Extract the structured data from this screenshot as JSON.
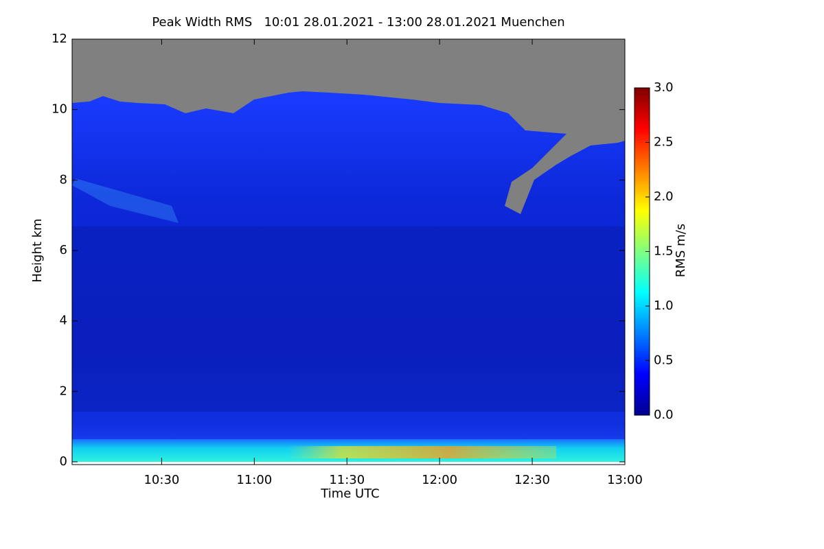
{
  "chart_data": {
    "type": "heatmap",
    "title": "Peak Width RMS   10:01 28.01.2021 - 13:00 28.01.2021 Muenchen",
    "x_label": "Time UTC",
    "y_label": "Height km",
    "xlim": [
      "10:01",
      "13:00"
    ],
    "xticks": [
      "10:30",
      "11:00",
      "11:30",
      "12:00",
      "12:30",
      "13:00"
    ],
    "ylim": [
      0,
      12
    ],
    "yticks": [
      0,
      2,
      4,
      6,
      8,
      10,
      12
    ],
    "colorbar": {
      "label": "RMS m/s",
      "colormap": "jet",
      "zlim": [
        0,
        3
      ],
      "zticks": [
        {
          "value": 0,
          "label": "0.0"
        },
        0.5,
        {
          "value": 1,
          "label": "1.0"
        },
        1.5,
        {
          "value": 2,
          "label": "2.0"
        },
        2.5,
        {
          "value": 3,
          "label": "3.0"
        }
      ]
    }
  }
}
